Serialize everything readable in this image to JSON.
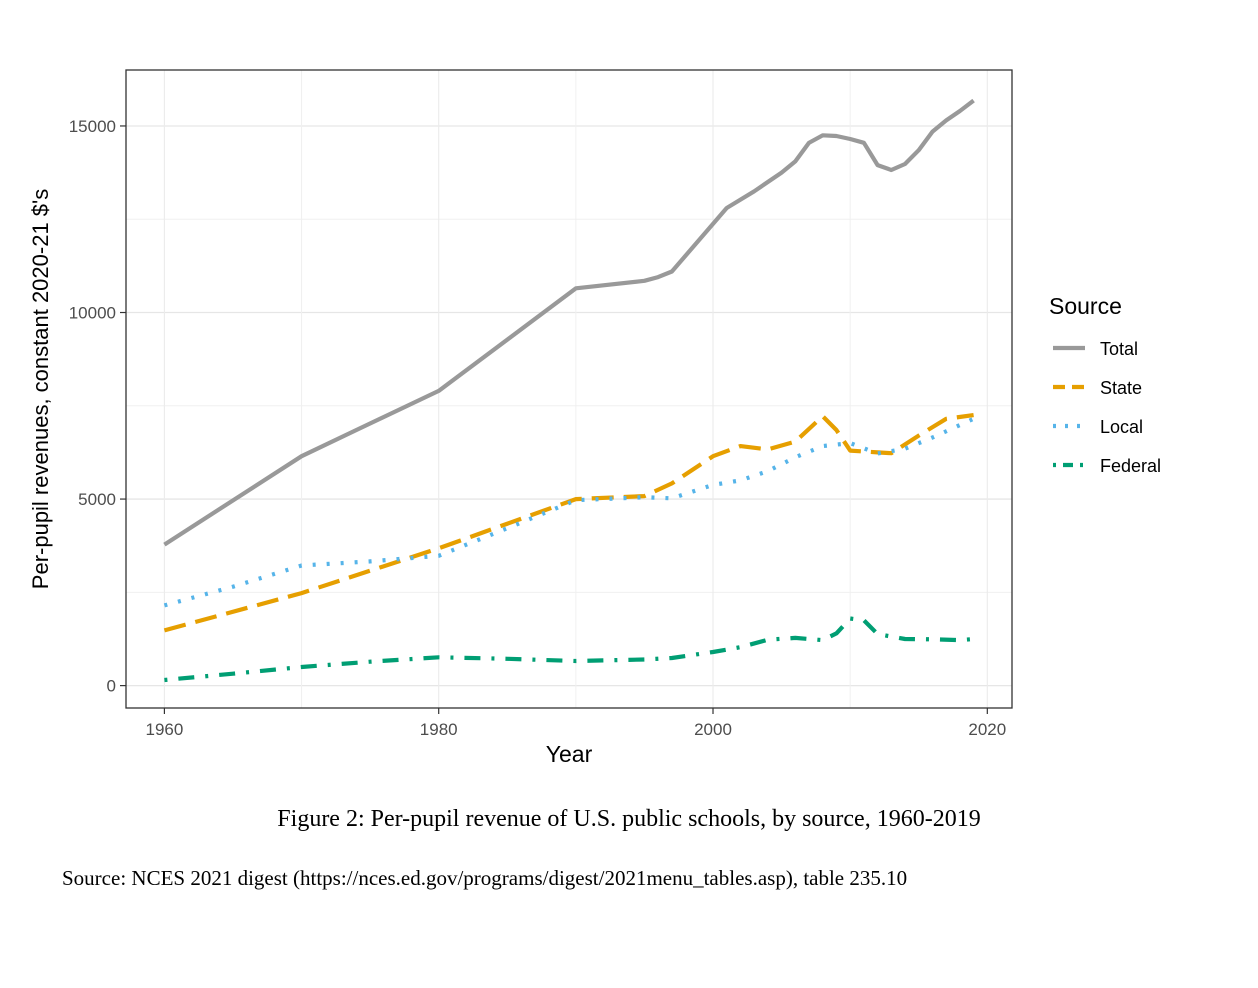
{
  "chart_data": {
    "type": "line",
    "title": "",
    "xlabel": "Year",
    "ylabel": "Per-pupil revenues, constant 2020-21 $'s",
    "xlim": [
      1957.2,
      2021.8
    ],
    "ylim": [
      -600,
      16500
    ],
    "x_ticks": [
      1960,
      1980,
      2000,
      2020
    ],
    "x_tick_labels": [
      "1960",
      "1980",
      "2000",
      "2020"
    ],
    "y_ticks": [
      0,
      5000,
      10000,
      15000
    ],
    "y_tick_labels": [
      "0",
      "5000",
      "10000",
      "15000"
    ],
    "grid": true,
    "legend_title": "Source",
    "legend_position": "right",
    "series": [
      {
        "name": "Total",
        "color": "#999999",
        "dash": "solid",
        "points": [
          [
            1960,
            3780
          ],
          [
            1970,
            6150
          ],
          [
            1974,
            6850
          ],
          [
            1980,
            7900
          ],
          [
            1990,
            10650
          ],
          [
            1995,
            10850
          ],
          [
            1996,
            10950
          ],
          [
            1997,
            11100
          ],
          [
            2001,
            12800
          ],
          [
            2003,
            13250
          ],
          [
            2005,
            13750
          ],
          [
            2006,
            14050
          ],
          [
            2007,
            14550
          ],
          [
            2008,
            14750
          ],
          [
            2009,
            14730
          ],
          [
            2010,
            14650
          ],
          [
            2011,
            14550
          ],
          [
            2012,
            13950
          ],
          [
            2013,
            13820
          ],
          [
            2014,
            13980
          ],
          [
            2015,
            14350
          ],
          [
            2016,
            14850
          ],
          [
            2017,
            15150
          ],
          [
            2018,
            15400
          ],
          [
            2019,
            15680
          ]
        ]
      },
      {
        "name": "State",
        "color": "#E69F00",
        "dash": "dashed",
        "points": [
          [
            1960,
            1480
          ],
          [
            1970,
            2480
          ],
          [
            1980,
            3680
          ],
          [
            1990,
            5000
          ],
          [
            1995,
            5080
          ],
          [
            1997,
            5420
          ],
          [
            2000,
            6150
          ],
          [
            2002,
            6420
          ],
          [
            2004,
            6330
          ],
          [
            2006,
            6540
          ],
          [
            2008,
            7220
          ],
          [
            2009,
            6850
          ],
          [
            2010,
            6300
          ],
          [
            2012,
            6250
          ],
          [
            2013,
            6230
          ],
          [
            2015,
            6700
          ],
          [
            2017,
            7150
          ],
          [
            2019,
            7250
          ]
        ]
      },
      {
        "name": "Local",
        "color": "#56B4E9",
        "dash": "dotted",
        "points": [
          [
            1960,
            2150
          ],
          [
            1965,
            2650
          ],
          [
            1970,
            3220
          ],
          [
            1975,
            3330
          ],
          [
            1980,
            3480
          ],
          [
            1985,
            4220
          ],
          [
            1990,
            4970
          ],
          [
            1995,
            5050
          ],
          [
            1997,
            5020
          ],
          [
            2000,
            5380
          ],
          [
            2002,
            5500
          ],
          [
            2004,
            5750
          ],
          [
            2006,
            6120
          ],
          [
            2008,
            6420
          ],
          [
            2010,
            6500
          ],
          [
            2012,
            6220
          ],
          [
            2014,
            6350
          ],
          [
            2016,
            6650
          ],
          [
            2019,
            7150
          ]
        ]
      },
      {
        "name": "Federal",
        "color": "#009E73",
        "dash": "dotdash",
        "points": [
          [
            1960,
            150
          ],
          [
            1965,
            320
          ],
          [
            1970,
            500
          ],
          [
            1975,
            640
          ],
          [
            1980,
            760
          ],
          [
            1985,
            720
          ],
          [
            1990,
            660
          ],
          [
            1995,
            700
          ],
          [
            1997,
            740
          ],
          [
            2000,
            900
          ],
          [
            2002,
            1030
          ],
          [
            2004,
            1230
          ],
          [
            2006,
            1280
          ],
          [
            2008,
            1220
          ],
          [
            2009,
            1400
          ],
          [
            2010,
            1800
          ],
          [
            2011,
            1750
          ],
          [
            2012,
            1380
          ],
          [
            2014,
            1250
          ],
          [
            2016,
            1240
          ],
          [
            2018,
            1220
          ],
          [
            2019,
            1250
          ]
        ]
      }
    ]
  },
  "caption": "Figure 2: Per-pupil revenue of U.S. public schools, by source, 1960-2019",
  "source_note": "Source: NCES 2021 digest (https://nces.ed.gov/programs/digest/2021menu_tables.asp), table 235.10"
}
